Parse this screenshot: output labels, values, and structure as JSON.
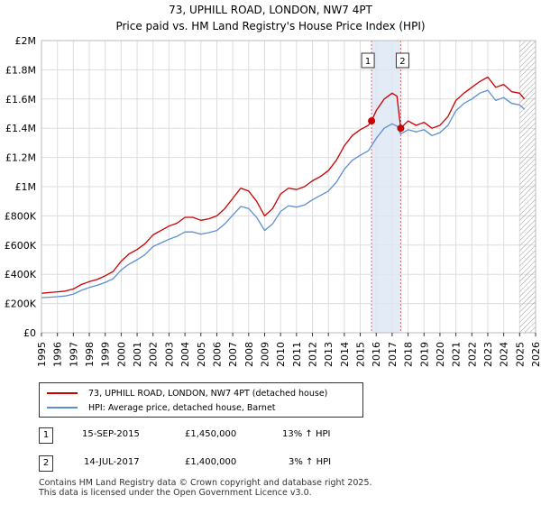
{
  "header": {
    "title": "73, UPHILL ROAD, LONDON, NW7 4PT",
    "subtitle": "Price paid vs. HM Land Registry's House Price Index (HPI)"
  },
  "colors": {
    "property": "#cc0000",
    "hpi": "#5b8fd0",
    "shade": "#dce6f5",
    "grid": "#dddddd"
  },
  "chart_data": {
    "type": "line",
    "title": "Price paid vs. HM Land Registry's House Price Index (HPI)",
    "xlabel": "",
    "ylabel": "",
    "xlim": [
      1995,
      2026
    ],
    "ylim": [
      0,
      2000000
    ],
    "x_ticks": [
      1995,
      1996,
      1997,
      1998,
      1999,
      2000,
      2001,
      2002,
      2003,
      2004,
      2005,
      2006,
      2007,
      2008,
      2009,
      2010,
      2011,
      2012,
      2013,
      2014,
      2015,
      2016,
      2017,
      2018,
      2019,
      2020,
      2021,
      2022,
      2023,
      2024,
      2025,
      2026
    ],
    "y_ticks": [
      {
        "value": 0,
        "label": "£0"
      },
      {
        "value": 200000,
        "label": "£200K"
      },
      {
        "value": 400000,
        "label": "£400K"
      },
      {
        "value": 600000,
        "label": "£600K"
      },
      {
        "value": 800000,
        "label": "£800K"
      },
      {
        "value": 1000000,
        "label": "£1M"
      },
      {
        "value": 1200000,
        "label": "£1.2M"
      },
      {
        "value": 1400000,
        "label": "£1.4M"
      },
      {
        "value": 1600000,
        "label": "£1.6M"
      },
      {
        "value": 1800000,
        "label": "£1.8M"
      },
      {
        "value": 2000000,
        "label": "£2M"
      }
    ],
    "shaded_range": [
      2015.71,
      2017.54
    ],
    "future_hatch_from": 2025.0,
    "series": [
      {
        "name": "73, UPHILL ROAD, LONDON, NW7 4PT (detached house)",
        "color": "#cc0000",
        "x": [
          1995.0,
          1995.5,
          1996.0,
          1996.5,
          1997.0,
          1997.5,
          1998.0,
          1998.5,
          1999.0,
          1999.5,
          2000.0,
          2000.5,
          2001.0,
          2001.5,
          2002.0,
          2002.5,
          2003.0,
          2003.5,
          2004.0,
          2004.5,
          2005.0,
          2005.5,
          2006.0,
          2006.5,
          2007.0,
          2007.5,
          2008.0,
          2008.5,
          2009.0,
          2009.5,
          2010.0,
          2010.5,
          2011.0,
          2011.5,
          2012.0,
          2012.5,
          2013.0,
          2013.5,
          2014.0,
          2014.5,
          2015.0,
          2015.5,
          2015.71,
          2016.0,
          2016.5,
          2017.0,
          2017.3,
          2017.54,
          2018.0,
          2018.5,
          2019.0,
          2019.5,
          2020.0,
          2020.5,
          2021.0,
          2021.5,
          2022.0,
          2022.5,
          2023.0,
          2023.5,
          2024.0,
          2024.5,
          2025.0,
          2025.3
        ],
        "y": [
          270000,
          275000,
          280000,
          285000,
          300000,
          330000,
          350000,
          365000,
          390000,
          420000,
          490000,
          540000,
          570000,
          610000,
          670000,
          700000,
          730000,
          750000,
          790000,
          790000,
          770000,
          780000,
          800000,
          850000,
          920000,
          990000,
          970000,
          900000,
          800000,
          850000,
          950000,
          990000,
          980000,
          1000000,
          1040000,
          1070000,
          1110000,
          1180000,
          1280000,
          1350000,
          1390000,
          1420000,
          1450000,
          1520000,
          1600000,
          1640000,
          1620000,
          1400000,
          1450000,
          1420000,
          1440000,
          1400000,
          1420000,
          1480000,
          1590000,
          1640000,
          1680000,
          1720000,
          1750000,
          1680000,
          1700000,
          1650000,
          1640000,
          1600000
        ]
      },
      {
        "name": "HPI: Average price, detached house, Barnet",
        "color": "#5b8fd0",
        "x": [
          1995.0,
          1995.5,
          1996.0,
          1996.5,
          1997.0,
          1997.5,
          1998.0,
          1998.5,
          1999.0,
          1999.5,
          2000.0,
          2000.5,
          2001.0,
          2001.5,
          2002.0,
          2002.5,
          2003.0,
          2003.5,
          2004.0,
          2004.5,
          2005.0,
          2005.5,
          2006.0,
          2006.5,
          2007.0,
          2007.5,
          2008.0,
          2008.5,
          2009.0,
          2009.5,
          2010.0,
          2010.5,
          2011.0,
          2011.5,
          2012.0,
          2012.5,
          2013.0,
          2013.5,
          2014.0,
          2014.5,
          2015.0,
          2015.5,
          2015.71,
          2016.0,
          2016.5,
          2017.0,
          2017.3,
          2017.54,
          2018.0,
          2018.5,
          2019.0,
          2019.5,
          2020.0,
          2020.5,
          2021.0,
          2021.5,
          2022.0,
          2022.5,
          2023.0,
          2023.5,
          2024.0,
          2024.5,
          2025.0,
          2025.3
        ],
        "y": [
          240000,
          243000,
          247000,
          252000,
          265000,
          290000,
          310000,
          325000,
          345000,
          370000,
          430000,
          470000,
          500000,
          535000,
          590000,
          615000,
          640000,
          660000,
          690000,
          690000,
          675000,
          685000,
          700000,
          745000,
          805000,
          865000,
          850000,
          790000,
          700000,
          745000,
          830000,
          870000,
          860000,
          875000,
          910000,
          940000,
          970000,
          1030000,
          1120000,
          1180000,
          1215000,
          1245000,
          1280000,
          1330000,
          1400000,
          1430000,
          1415000,
          1360000,
          1390000,
          1375000,
          1390000,
          1350000,
          1370000,
          1420000,
          1520000,
          1570000,
          1600000,
          1640000,
          1660000,
          1590000,
          1610000,
          1570000,
          1560000,
          1530000
        ]
      }
    ],
    "sales": [
      {
        "id": "1",
        "x": 2015.71,
        "y": 1450000
      },
      {
        "id": "2",
        "x": 2017.54,
        "y": 1400000
      }
    ]
  },
  "legend": {
    "property_label": "73, UPHILL ROAD, LONDON, NW7 4PT (detached house)",
    "hpi_label": "HPI: Average price, detached house, Barnet"
  },
  "transactions": [
    {
      "id": "1",
      "date": "15-SEP-2015",
      "price": "£1,450,000",
      "hpi": "13% ↑ HPI"
    },
    {
      "id": "2",
      "date": "14-JUL-2017",
      "price": "£1,400,000",
      "hpi": "3% ↑ HPI"
    }
  ],
  "footer": {
    "line1": "Contains HM Land Registry data © Crown copyright and database right 2025.",
    "line2": "This data is licensed under the Open Government Licence v3.0."
  }
}
